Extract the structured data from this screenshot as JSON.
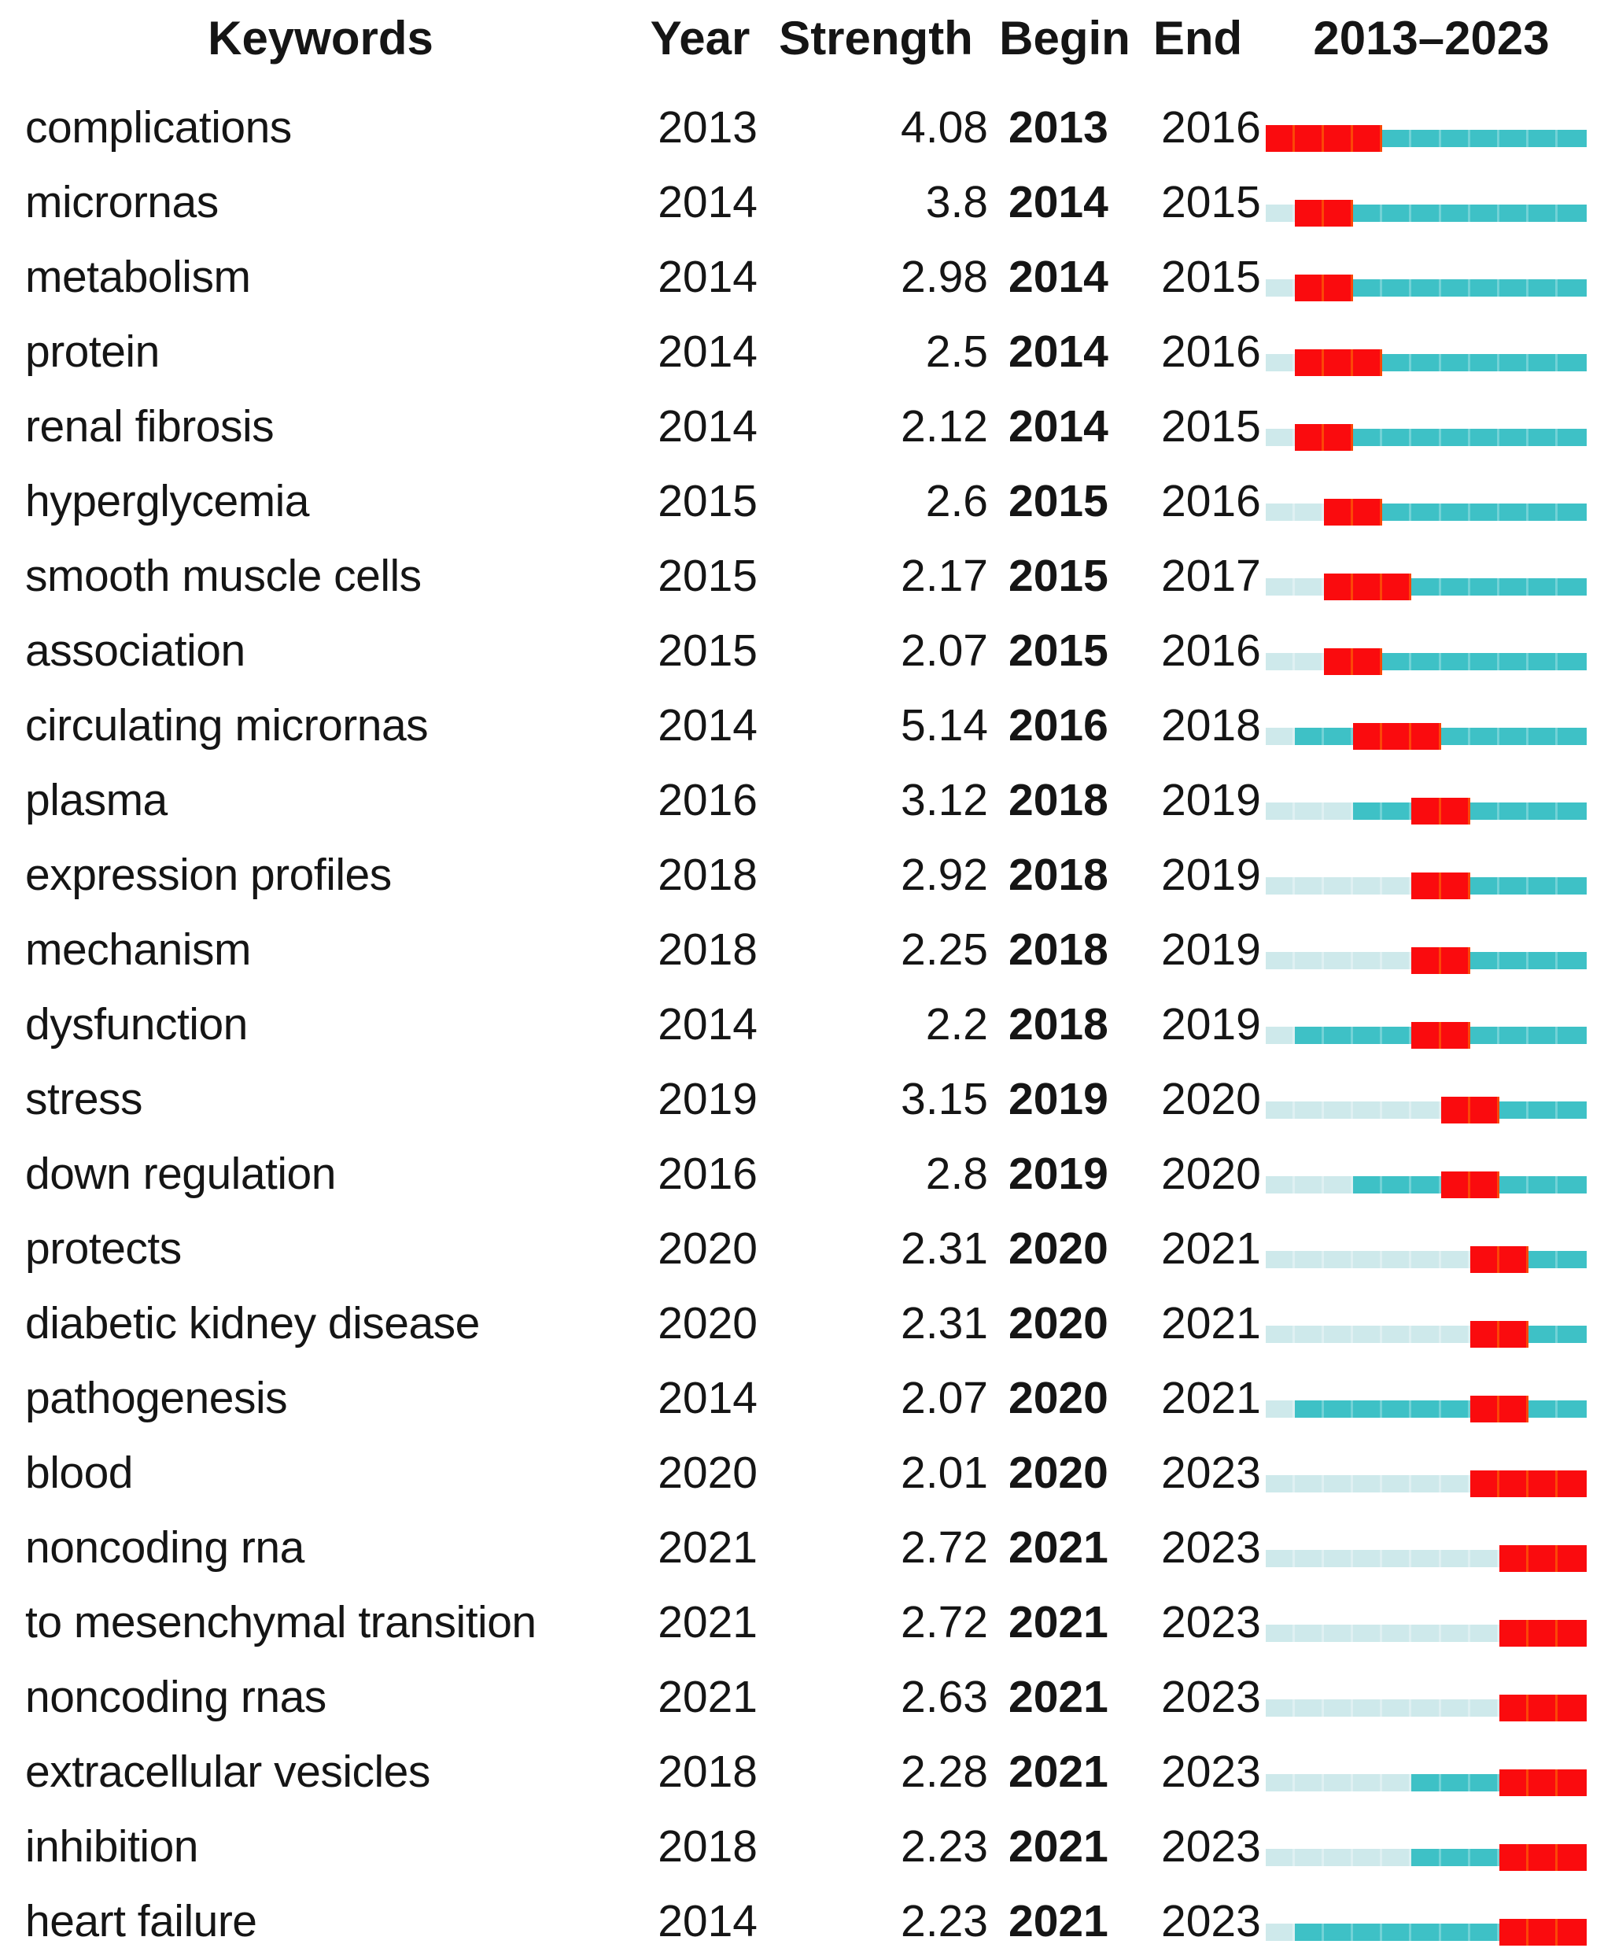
{
  "chart_data": {
    "type": "table",
    "columns": {
      "keywords": "Keywords",
      "year": "Year",
      "strength": "Strength",
      "begin": "Begin",
      "end": "End",
      "range": "2013–2023"
    },
    "timeline": {
      "start_year": 2013,
      "end_year": 2023
    },
    "colors": {
      "burst_red": "#FA0B0E",
      "active_teal": "#3EC1C6",
      "pre_appearance_cyan": "#CEE9EB",
      "text": "#151515"
    },
    "legend_note": "red = burst interval (Begin–End), teal = years after first appearance, light cyan = years before first appearance",
    "rows": [
      {
        "keyword": "complications",
        "year": 2013,
        "strength": "4.08",
        "begin": 2013,
        "end": 2016
      },
      {
        "keyword": "micrornas",
        "year": 2014,
        "strength": "3.8",
        "begin": 2014,
        "end": 2015
      },
      {
        "keyword": "metabolism",
        "year": 2014,
        "strength": "2.98",
        "begin": 2014,
        "end": 2015
      },
      {
        "keyword": "protein",
        "year": 2014,
        "strength": "2.5",
        "begin": 2014,
        "end": 2016
      },
      {
        "keyword": "renal fibrosis",
        "year": 2014,
        "strength": "2.12",
        "begin": 2014,
        "end": 2015
      },
      {
        "keyword": "hyperglycemia",
        "year": 2015,
        "strength": "2.6",
        "begin": 2015,
        "end": 2016
      },
      {
        "keyword": "smooth muscle cells",
        "year": 2015,
        "strength": "2.17",
        "begin": 2015,
        "end": 2017
      },
      {
        "keyword": "association",
        "year": 2015,
        "strength": "2.07",
        "begin": 2015,
        "end": 2016
      },
      {
        "keyword": "circulating micrornas",
        "year": 2014,
        "strength": "5.14",
        "begin": 2016,
        "end": 2018
      },
      {
        "keyword": "plasma",
        "year": 2016,
        "strength": "3.12",
        "begin": 2018,
        "end": 2019
      },
      {
        "keyword": "expression profiles",
        "year": 2018,
        "strength": "2.92",
        "begin": 2018,
        "end": 2019
      },
      {
        "keyword": "mechanism",
        "year": 2018,
        "strength": "2.25",
        "begin": 2018,
        "end": 2019
      },
      {
        "keyword": "dysfunction",
        "year": 2014,
        "strength": "2.2",
        "begin": 2018,
        "end": 2019
      },
      {
        "keyword": "stress",
        "year": 2019,
        "strength": "3.15",
        "begin": 2019,
        "end": 2020
      },
      {
        "keyword": "down regulation",
        "year": 2016,
        "strength": "2.8",
        "begin": 2019,
        "end": 2020
      },
      {
        "keyword": "protects",
        "year": 2020,
        "strength": "2.31",
        "begin": 2020,
        "end": 2021
      },
      {
        "keyword": "diabetic kidney disease",
        "year": 2020,
        "strength": "2.31",
        "begin": 2020,
        "end": 2021
      },
      {
        "keyword": "pathogenesis",
        "year": 2014,
        "strength": "2.07",
        "begin": 2020,
        "end": 2021
      },
      {
        "keyword": "blood",
        "year": 2020,
        "strength": "2.01",
        "begin": 2020,
        "end": 2023
      },
      {
        "keyword": "noncoding rna",
        "year": 2021,
        "strength": "2.72",
        "begin": 2021,
        "end": 2023
      },
      {
        "keyword": "to mesenchymal transition",
        "year": 2021,
        "strength": "2.72",
        "begin": 2021,
        "end": 2023
      },
      {
        "keyword": "noncoding rnas",
        "year": 2021,
        "strength": "2.63",
        "begin": 2021,
        "end": 2023
      },
      {
        "keyword": "extracellular vesicles",
        "year": 2018,
        "strength": "2.28",
        "begin": 2021,
        "end": 2023
      },
      {
        "keyword": "inhibition",
        "year": 2018,
        "strength": "2.23",
        "begin": 2021,
        "end": 2023
      },
      {
        "keyword": "heart failure",
        "year": 2014,
        "strength": "2.23",
        "begin": 2021,
        "end": 2023
      }
    ]
  }
}
